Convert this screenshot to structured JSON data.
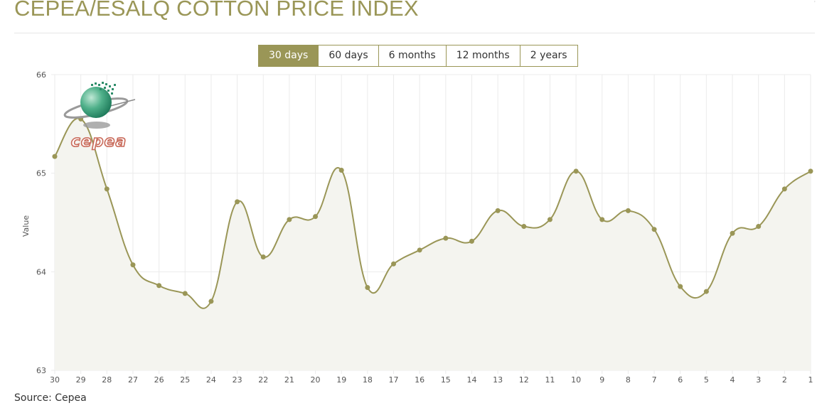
{
  "title": "CEPEA/ESALQ COTTON PRICE INDEX",
  "tabs": [
    {
      "label": "30 days",
      "active": true
    },
    {
      "label": "60 days",
      "active": false
    },
    {
      "label": "6 months",
      "active": false
    },
    {
      "label": "12 months",
      "active": false
    },
    {
      "label": "2 years",
      "active": false
    }
  ],
  "logo_text": "CEPEA",
  "source_text": "Source: Cepea",
  "colors": {
    "accent": "#9a9657",
    "fill": "#f4f4ef",
    "grid": "#ebebeb",
    "logo_red": "#c96b5b"
  },
  "chart_data": {
    "type": "line",
    "title": "",
    "xlabel": "",
    "ylabel": "Value",
    "categories": [
      "30",
      "29",
      "28",
      "27",
      "26",
      "25",
      "24",
      "23",
      "22",
      "21",
      "20",
      "19",
      "18",
      "17",
      "16",
      "15",
      "14",
      "13",
      "12",
      "11",
      "10",
      "9",
      "8",
      "7",
      "6",
      "5",
      "4",
      "3",
      "2",
      "1"
    ],
    "series": [
      {
        "values": [
          65.17,
          65.55,
          64.84,
          64.07,
          63.86,
          63.78,
          63.7,
          64.71,
          64.15,
          64.53,
          64.56,
          65.03,
          63.84,
          64.08,
          64.22,
          64.34,
          64.31,
          64.62,
          64.46,
          64.53,
          65.02,
          64.53,
          64.62,
          64.43,
          63.85,
          63.8,
          64.39,
          64.46,
          64.84,
          65.02
        ]
      }
    ],
    "ylim": [
      63,
      66
    ],
    "yticks": [
      63,
      64,
      65,
      66
    ],
    "grid": true,
    "legend": "none"
  }
}
